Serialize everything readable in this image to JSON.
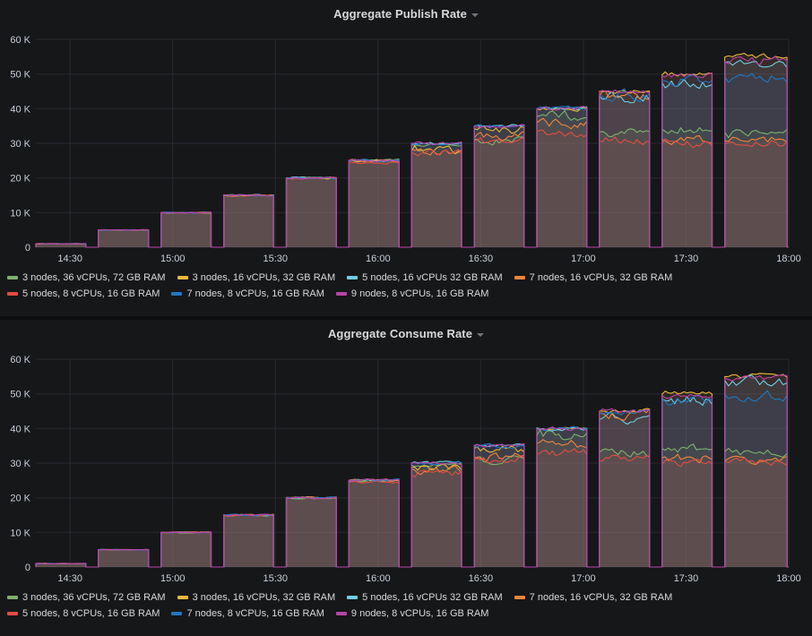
{
  "theme": {
    "page_bg": "#101214",
    "panel_bg": "#161719",
    "grid_color": "#26292e",
    "axis_text_color": "#c7d0d9",
    "title_color": "#d8d9da"
  },
  "chart_data": [
    {
      "type": "area",
      "title": "Aggregate Publish Rate",
      "xlabel": "",
      "ylabel": "",
      "ylim": [
        0,
        60000
      ],
      "grid": true,
      "legend_position": "bottom",
      "time_range_minutes": [
        0,
        220
      ],
      "yticks": [
        {
          "v": 0,
          "label": "0"
        },
        {
          "v": 10000,
          "label": "10 K"
        },
        {
          "v": 20000,
          "label": "20 K"
        },
        {
          "v": 30000,
          "label": "30 K"
        },
        {
          "v": 40000,
          "label": "40 K"
        },
        {
          "v": 50000,
          "label": "50 K"
        },
        {
          "v": 60000,
          "label": "60 K"
        }
      ],
      "xticks": [
        {
          "t": 10,
          "label": "14:30"
        },
        {
          "t": 40,
          "label": "15:00"
        },
        {
          "t": 70,
          "label": "15:30"
        },
        {
          "t": 100,
          "label": "16:00"
        },
        {
          "t": 130,
          "label": "16:30"
        },
        {
          "t": 160,
          "label": "17:00"
        },
        {
          "t": 190,
          "label": "17:30"
        },
        {
          "t": 220,
          "label": "18:00"
        }
      ],
      "step_targets": [
        1000,
        5000,
        10000,
        15000,
        20000,
        25000,
        30000,
        35000,
        40000,
        45000,
        50000,
        55000
      ],
      "step_windows": [
        [
          0,
          14.6
        ],
        [
          18.3,
          32.9
        ],
        [
          36.6,
          51.2
        ],
        [
          54.9,
          69.5
        ],
        [
          73.2,
          87.8
        ],
        [
          91.5,
          106.1
        ],
        [
          109.8,
          124.4
        ],
        [
          128.1,
          142.7
        ],
        [
          146.4,
          161.0
        ],
        [
          164.7,
          179.3
        ],
        [
          183.0,
          197.6
        ],
        [
          201.3,
          219.5
        ]
      ],
      "series": [
        {
          "name": "3 nodes, 36 vCPUs, 72 GB RAM",
          "color": "#7EB26D",
          "values": [
            1000,
            5000,
            10000,
            15000,
            20000,
            25000,
            29500,
            31000,
            38000,
            33000,
            34000,
            33000
          ]
        },
        {
          "name": "3 nodes, 16 vCPUs, 32 GB RAM",
          "color": "#EAB839",
          "values": [
            1000,
            5000,
            10000,
            15000,
            20000,
            25000,
            28000,
            34000,
            40000,
            45000,
            50000,
            55000
          ]
        },
        {
          "name": "5 nodes, 16 vCPUs 32 GB RAM",
          "color": "#6ED0E0",
          "values": [
            1000,
            5000,
            10000,
            15000,
            20000,
            25000,
            30000,
            35000,
            40000,
            43000,
            47500,
            53000
          ]
        },
        {
          "name": "7 nodes, 16 vCPUs, 32 GB RAM",
          "color": "#EF843C",
          "values": [
            1000,
            5000,
            10000,
            15000,
            20000,
            25000,
            28000,
            32000,
            35500,
            44000,
            31000,
            31000
          ]
        },
        {
          "name": "5 nodes, 8 vCPUs, 16 GB RAM",
          "color": "#E24D42",
          "values": [
            1000,
            5000,
            10000,
            15000,
            20000,
            24500,
            27000,
            31000,
            33000,
            31000,
            30000,
            30000
          ]
        },
        {
          "name": "7 nodes, 8 vCPUs, 16 GB RAM",
          "color": "#1F78C1",
          "values": [
            1000,
            5000,
            10000,
            15000,
            20000,
            25000,
            30000,
            35000,
            40000,
            44000,
            48000,
            49000
          ]
        },
        {
          "name": "9 nodes, 8 vCPUs, 16 GB RAM",
          "color": "#BA43A9",
          "values": [
            1000,
            5000,
            10000,
            15000,
            20000,
            25000,
            30000,
            35000,
            40000,
            45000,
            49500,
            54000
          ]
        }
      ]
    },
    {
      "type": "area",
      "title": "Aggregate Consume Rate",
      "xlabel": "",
      "ylabel": "",
      "ylim": [
        0,
        60000
      ],
      "grid": true,
      "legend_position": "bottom",
      "time_range_minutes": [
        0,
        220
      ],
      "yticks": [
        {
          "v": 0,
          "label": "0"
        },
        {
          "v": 10000,
          "label": "10 K"
        },
        {
          "v": 20000,
          "label": "20 K"
        },
        {
          "v": 30000,
          "label": "30 K"
        },
        {
          "v": 40000,
          "label": "40 K"
        },
        {
          "v": 50000,
          "label": "50 K"
        },
        {
          "v": 60000,
          "label": "60 K"
        }
      ],
      "xticks": [
        {
          "t": 10,
          "label": "14:30"
        },
        {
          "t": 40,
          "label": "15:00"
        },
        {
          "t": 70,
          "label": "15:30"
        },
        {
          "t": 100,
          "label": "16:00"
        },
        {
          "t": 130,
          "label": "16:30"
        },
        {
          "t": 160,
          "label": "17:00"
        },
        {
          "t": 190,
          "label": "17:30"
        },
        {
          "t": 220,
          "label": "18:00"
        }
      ],
      "step_targets": [
        1000,
        5000,
        10000,
        15000,
        20000,
        25000,
        30000,
        35000,
        40000,
        45000,
        50000,
        55000
      ],
      "step_windows": [
        [
          0,
          14.6
        ],
        [
          18.3,
          32.9
        ],
        [
          36.6,
          51.2
        ],
        [
          54.9,
          69.5
        ],
        [
          73.2,
          87.8
        ],
        [
          91.5,
          106.1
        ],
        [
          109.8,
          124.4
        ],
        [
          128.1,
          142.7
        ],
        [
          146.4,
          161.0
        ],
        [
          164.7,
          179.3
        ],
        [
          183.0,
          197.6
        ],
        [
          201.3,
          219.5
        ]
      ],
      "series": [
        {
          "name": "3 nodes, 36 vCPUs, 72 GB RAM",
          "color": "#7EB26D",
          "values": [
            1000,
            5000,
            10000,
            15000,
            20000,
            25000,
            29500,
            31000,
            38000,
            33000,
            34000,
            33000
          ]
        },
        {
          "name": "3 nodes, 16 vCPUs, 32 GB RAM",
          "color": "#EAB839",
          "values": [
            1000,
            5000,
            10000,
            15000,
            20000,
            25000,
            28500,
            34000,
            40000,
            45000,
            50000,
            55000
          ]
        },
        {
          "name": "5 nodes, 16 vCPUs 32 GB RAM",
          "color": "#6ED0E0",
          "values": [
            1000,
            5000,
            10000,
            15000,
            20000,
            25000,
            30000,
            35000,
            40000,
            43000,
            48000,
            53500
          ]
        },
        {
          "name": "7 nodes, 16 vCPUs, 32 GB RAM",
          "color": "#EF843C",
          "values": [
            1000,
            5000,
            10000,
            15000,
            20000,
            25000,
            28000,
            32000,
            35500,
            44000,
            31500,
            31000
          ]
        },
        {
          "name": "5 nodes, 8 vCPUs, 16 GB RAM",
          "color": "#E24D42",
          "values": [
            1000,
            5000,
            10000,
            15000,
            20000,
            24500,
            27000,
            31000,
            33000,
            31000,
            30000,
            30500
          ]
        },
        {
          "name": "7 nodes, 8 vCPUs, 16 GB RAM",
          "color": "#1F78C1",
          "values": [
            1000,
            5000,
            10000,
            15000,
            20000,
            25000,
            30000,
            35000,
            40000,
            44500,
            48000,
            49500
          ]
        },
        {
          "name": "9 nodes, 8 vCPUs, 16 GB RAM",
          "color": "#BA43A9",
          "values": [
            1000,
            5000,
            10000,
            15000,
            20000,
            25000,
            30000,
            35000,
            40000,
            45000,
            49500,
            54500
          ]
        }
      ]
    }
  ]
}
